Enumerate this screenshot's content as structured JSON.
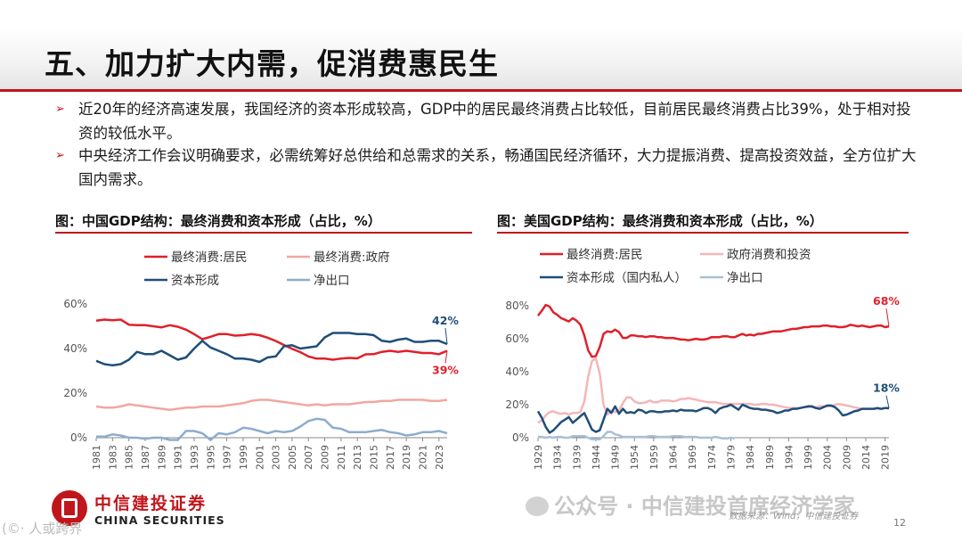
{
  "page": {
    "title": "五、加力扩大内需，促消费惠民生",
    "bullets": [
      "近20年的经济高速发展，我国经济的资本形成较高，GDP中的居民最终消费占比较低，目前居民最终消费占比39%，处于相对投资的较低水平。",
      "中央经济工作会议明确要求，必需统筹好总供给和总需求的关系，畅通国民经济循环，大力提振消费、提高投资效益，全方位扩大国内需求。"
    ],
    "bullet_marker": "➢",
    "source": "数据来源：Wind，中信建投证券",
    "page_number": "12",
    "logo": {
      "cn": "中信建投证券",
      "en": "CHINA SECURITIES"
    },
    "watermark": "公众号 · 中信建投首席经济学家",
    "watermark_left": "(©· 人或跨界"
  },
  "chart_data": [
    {
      "type": "line",
      "title": "图：中国GDP结构：最终消费和资本形成（占比，%）",
      "ylim": [
        0,
        60
      ],
      "yticks": [
        "0%",
        "20%",
        "40%",
        "60%"
      ],
      "xticks": [
        "1981",
        "1983",
        "1985",
        "1987",
        "1989",
        "1991",
        "1993",
        "1995",
        "1997",
        "1999",
        "2001",
        "2003",
        "2005",
        "2007",
        "2009",
        "2011",
        "2013",
        "2015",
        "2017",
        "2019",
        "2021",
        "2023"
      ],
      "legend": {
        "placement": "top",
        "columns": 2
      },
      "annotations": [
        {
          "text": "42%",
          "series": "资本形成",
          "color": "#1f4e79"
        },
        {
          "text": "39%",
          "series": "最终消费:居民",
          "color": "#e0202a"
        }
      ],
      "series": [
        {
          "name": "最终消费:居民",
          "color": "#e0202a",
          "width": 2.5,
          "x_start": 1981,
          "values": [
            52.5,
            53.0,
            52.7,
            53.0,
            50.7,
            50.5,
            50.5,
            50.0,
            49.5,
            50.5,
            49.8,
            48.5,
            46.5,
            44.2,
            45.3,
            46.5,
            46.5,
            45.8,
            46.0,
            46.5,
            46.0,
            44.9,
            43.4,
            41.6,
            39.9,
            38.4,
            36.5,
            35.5,
            35.5,
            35.0,
            35.5,
            35.8,
            35.6,
            37.4,
            37.5,
            38.5,
            39.0,
            38.5,
            39.0,
            38.5,
            38.0,
            38.0,
            37.5,
            39.0
          ]
        },
        {
          "name": "最终消费:政府",
          "color": "#f0a7a0",
          "width": 2.5,
          "x_start": 1981,
          "values": [
            14.0,
            13.5,
            13.5,
            14.0,
            15.0,
            14.5,
            14.0,
            13.5,
            13.0,
            12.5,
            13.0,
            13.5,
            13.5,
            14.0,
            14.0,
            14.0,
            14.5,
            15.0,
            15.5,
            16.5,
            17.0,
            17.0,
            16.5,
            16.0,
            15.5,
            15.0,
            14.5,
            15.0,
            14.5,
            15.0,
            15.0,
            15.0,
            15.5,
            16.0,
            16.0,
            16.5,
            16.5,
            17.0,
            17.0,
            17.0,
            17.0,
            16.5,
            16.5,
            17.0
          ]
        },
        {
          "name": "资本形成",
          "color": "#1f4e79",
          "width": 2.5,
          "x_start": 1981,
          "values": [
            34.5,
            33.0,
            32.5,
            33.0,
            35.0,
            38.5,
            37.5,
            37.5,
            39.0,
            37.0,
            35.0,
            36.0,
            40.0,
            43.5,
            40.5,
            39.0,
            37.5,
            35.5,
            35.5,
            35.0,
            34.0,
            36.0,
            36.5,
            41.0,
            41.5,
            40.0,
            40.5,
            41.0,
            45.0,
            47.0,
            47.0,
            47.0,
            46.5,
            46.5,
            46.0,
            43.5,
            43.0,
            44.0,
            44.5,
            43.0,
            43.0,
            43.5,
            43.5,
            42.0
          ]
        },
        {
          "name": "净出口",
          "color": "#8eaccd",
          "width": 2.5,
          "x_start": 1981,
          "values": [
            0.5,
            0.5,
            1.5,
            1.0,
            0.0,
            0.0,
            -0.5,
            0.0,
            0.0,
            -1.0,
            -1.0,
            3.0,
            3.0,
            2.0,
            -1.0,
            2.0,
            1.5,
            2.5,
            4.5,
            4.0,
            3.0,
            2.0,
            3.0,
            2.5,
            3.0,
            5.0,
            7.5,
            8.5,
            8.0,
            4.5,
            4.0,
            2.5,
            2.5,
            2.5,
            3.0,
            3.5,
            2.5,
            2.0,
            1.0,
            1.5,
            2.5,
            2.5,
            3.0,
            2.0
          ]
        }
      ]
    },
    {
      "type": "line",
      "title": "图：美国GDP结构：最终消费和资本形成（占比，%）",
      "ylim": [
        0,
        80
      ],
      "yticks": [
        "0%",
        "20%",
        "40%",
        "60%",
        "80%"
      ],
      "xticks": [
        "1929",
        "1934",
        "1939",
        "1944",
        "1949",
        "1954",
        "1959",
        "1964",
        "1969",
        "1974",
        "1979",
        "1984",
        "1989",
        "1994",
        "1999",
        "2004",
        "2009",
        "2014",
        "2019"
      ],
      "legend": {
        "placement": "top",
        "columns": 2
      },
      "annotations": [
        {
          "text": "68%",
          "series": "最终消费:居民",
          "color": "#e0202a"
        },
        {
          "text": "18%",
          "series": "资本形成（国内私人）",
          "color": "#1f4e79"
        }
      ],
      "series": [
        {
          "name": "最终消费:居民",
          "color": "#e0202a",
          "width": 2.5,
          "x_start": 1929,
          "values": [
            74.0,
            77.0,
            80.5,
            79.5,
            76.0,
            74.5,
            72.5,
            71.5,
            70.5,
            72.5,
            71.0,
            68.5,
            62.0,
            53.0,
            49.0,
            49.5,
            55.0,
            63.0,
            64.5,
            64.0,
            65.5,
            64.0,
            60.5,
            60.5,
            62.0,
            62.0,
            61.5,
            61.5,
            61.0,
            61.5,
            61.5,
            61.0,
            61.0,
            60.5,
            60.5,
            60.5,
            60.0,
            59.5,
            59.5,
            59.0,
            59.5,
            60.0,
            59.5,
            59.5,
            60.0,
            61.0,
            61.0,
            61.0,
            61.5,
            61.5,
            61.0,
            61.0,
            62.0,
            63.0,
            62.0,
            62.5,
            62.0,
            63.0,
            63.0,
            63.5,
            64.0,
            64.5,
            64.5,
            64.5,
            65.0,
            65.5,
            66.0,
            66.0,
            66.5,
            67.0,
            67.0,
            67.5,
            67.5,
            67.5,
            68.0,
            68.0,
            67.5,
            67.5,
            67.0,
            67.0,
            67.5,
            68.5,
            68.0,
            67.5,
            68.0,
            67.5,
            67.0,
            67.5,
            68.0,
            68.0,
            67.0,
            67.5
          ]
        },
        {
          "name": "政府消费和投资",
          "color": "#f4b6b9",
          "width": 2.5,
          "x_start": 1929,
          "values": [
            9.0,
            10.5,
            13.5,
            15.5,
            16.0,
            15.0,
            14.5,
            15.0,
            14.0,
            15.0,
            15.0,
            15.5,
            22.0,
            37.0,
            46.5,
            48.0,
            39.0,
            20.0,
            14.0,
            16.5,
            15.5,
            16.5,
            21.0,
            24.5,
            24.5,
            22.0,
            21.0,
            21.0,
            21.5,
            22.5,
            21.5,
            21.5,
            22.5,
            22.5,
            22.5,
            22.0,
            22.5,
            23.5,
            23.5,
            24.0,
            23.5,
            23.0,
            22.5,
            22.0,
            21.5,
            21.5,
            21.5,
            21.0,
            20.5,
            20.5,
            20.5,
            20.5,
            20.5,
            20.5,
            20.5,
            20.5,
            20.0,
            20.0,
            20.5,
            20.5,
            20.0,
            20.0,
            19.5,
            19.0,
            18.5,
            18.0,
            18.0,
            18.0,
            18.0,
            18.5,
            18.5,
            18.5,
            18.5,
            19.0,
            19.0,
            19.0,
            19.0,
            20.0,
            20.5,
            20.0,
            19.5,
            19.0,
            18.5,
            18.0,
            17.5,
            17.5,
            17.5,
            17.5,
            17.5,
            17.5,
            18.0,
            17.5
          ]
        },
        {
          "name": "资本形成（国内私人）",
          "color": "#1f4e79",
          "width": 2.5,
          "x_start": 1929,
          "values": [
            16.0,
            12.0,
            6.5,
            3.0,
            4.5,
            7.0,
            9.5,
            11.0,
            12.5,
            9.0,
            11.0,
            13.0,
            15.0,
            10.0,
            5.0,
            3.5,
            4.5,
            11.0,
            17.5,
            15.0,
            19.0,
            14.5,
            17.5,
            15.0,
            15.5,
            15.0,
            17.0,
            16.5,
            15.0,
            16.0,
            16.0,
            15.5,
            15.5,
            16.0,
            16.0,
            16.5,
            16.0,
            17.0,
            16.5,
            16.5,
            16.5,
            16.0,
            17.0,
            18.0,
            18.0,
            17.0,
            15.0,
            17.5,
            18.5,
            19.0,
            20.0,
            18.5,
            17.0,
            20.0,
            19.0,
            18.0,
            17.5,
            17.5,
            17.0,
            17.0,
            16.5,
            16.0,
            15.0,
            15.5,
            16.5,
            16.5,
            17.5,
            17.5,
            18.0,
            18.5,
            19.0,
            19.0,
            18.0,
            17.5,
            18.5,
            19.5,
            19.5,
            18.5,
            16.5,
            13.5,
            14.0,
            15.0,
            16.0,
            16.5,
            17.5,
            17.5,
            17.5,
            17.5,
            18.0,
            17.5,
            18.0,
            18.0
          ]
        },
        {
          "name": "净出口",
          "color": "#a9bfd6",
          "width": 2.5,
          "x_start": 1929,
          "x_end": 1980,
          "values": [
            0.5,
            0.5,
            0.0,
            0.5,
            0.0,
            0.5,
            0.5,
            0.0,
            0.0,
            1.0,
            1.0,
            1.0,
            1.0,
            0.0,
            -1.0,
            -1.0,
            -1.0,
            1.0,
            3.5,
            3.5,
            2.0,
            1.5,
            0.5,
            0.5,
            0.5,
            0.5,
            0.5,
            0.5,
            0.5,
            1.0,
            1.0,
            0.5,
            0.5,
            0.5,
            0.5,
            1.0,
            1.0,
            1.0,
            0.5,
            0.5,
            0.5,
            0.5,
            0.0,
            0.0,
            0.0,
            0.0,
            0.5,
            0.0,
            -0.5,
            -0.5,
            0.0,
            -0.5
          ]
        }
      ]
    }
  ]
}
